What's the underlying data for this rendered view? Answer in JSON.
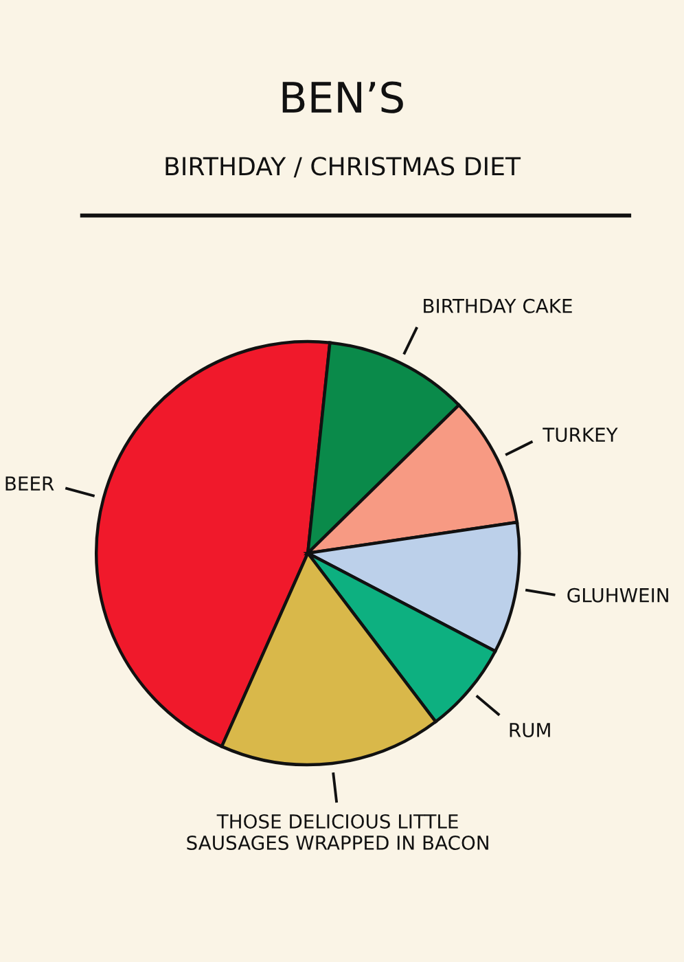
{
  "chart_data": {
    "type": "pie",
    "title": "BEN’S",
    "subtitle": "BIRTHDAY / CHRISTMAS DIET",
    "categories": [
      "BEER",
      "BIRTHDAY CAKE",
      "TURKEY",
      "GLUHWEIN",
      "RUM",
      "THOSE DELICIOUS LITTLE\nSAUSAGES WRAPPED IN BACON"
    ],
    "values": [
      45,
      11,
      10,
      10,
      7,
      17
    ],
    "colors": [
      "#f0192b",
      "#0a8a4a",
      "#f79a83",
      "#bcd0ea",
      "#0db080",
      "#d9b84a"
    ]
  }
}
